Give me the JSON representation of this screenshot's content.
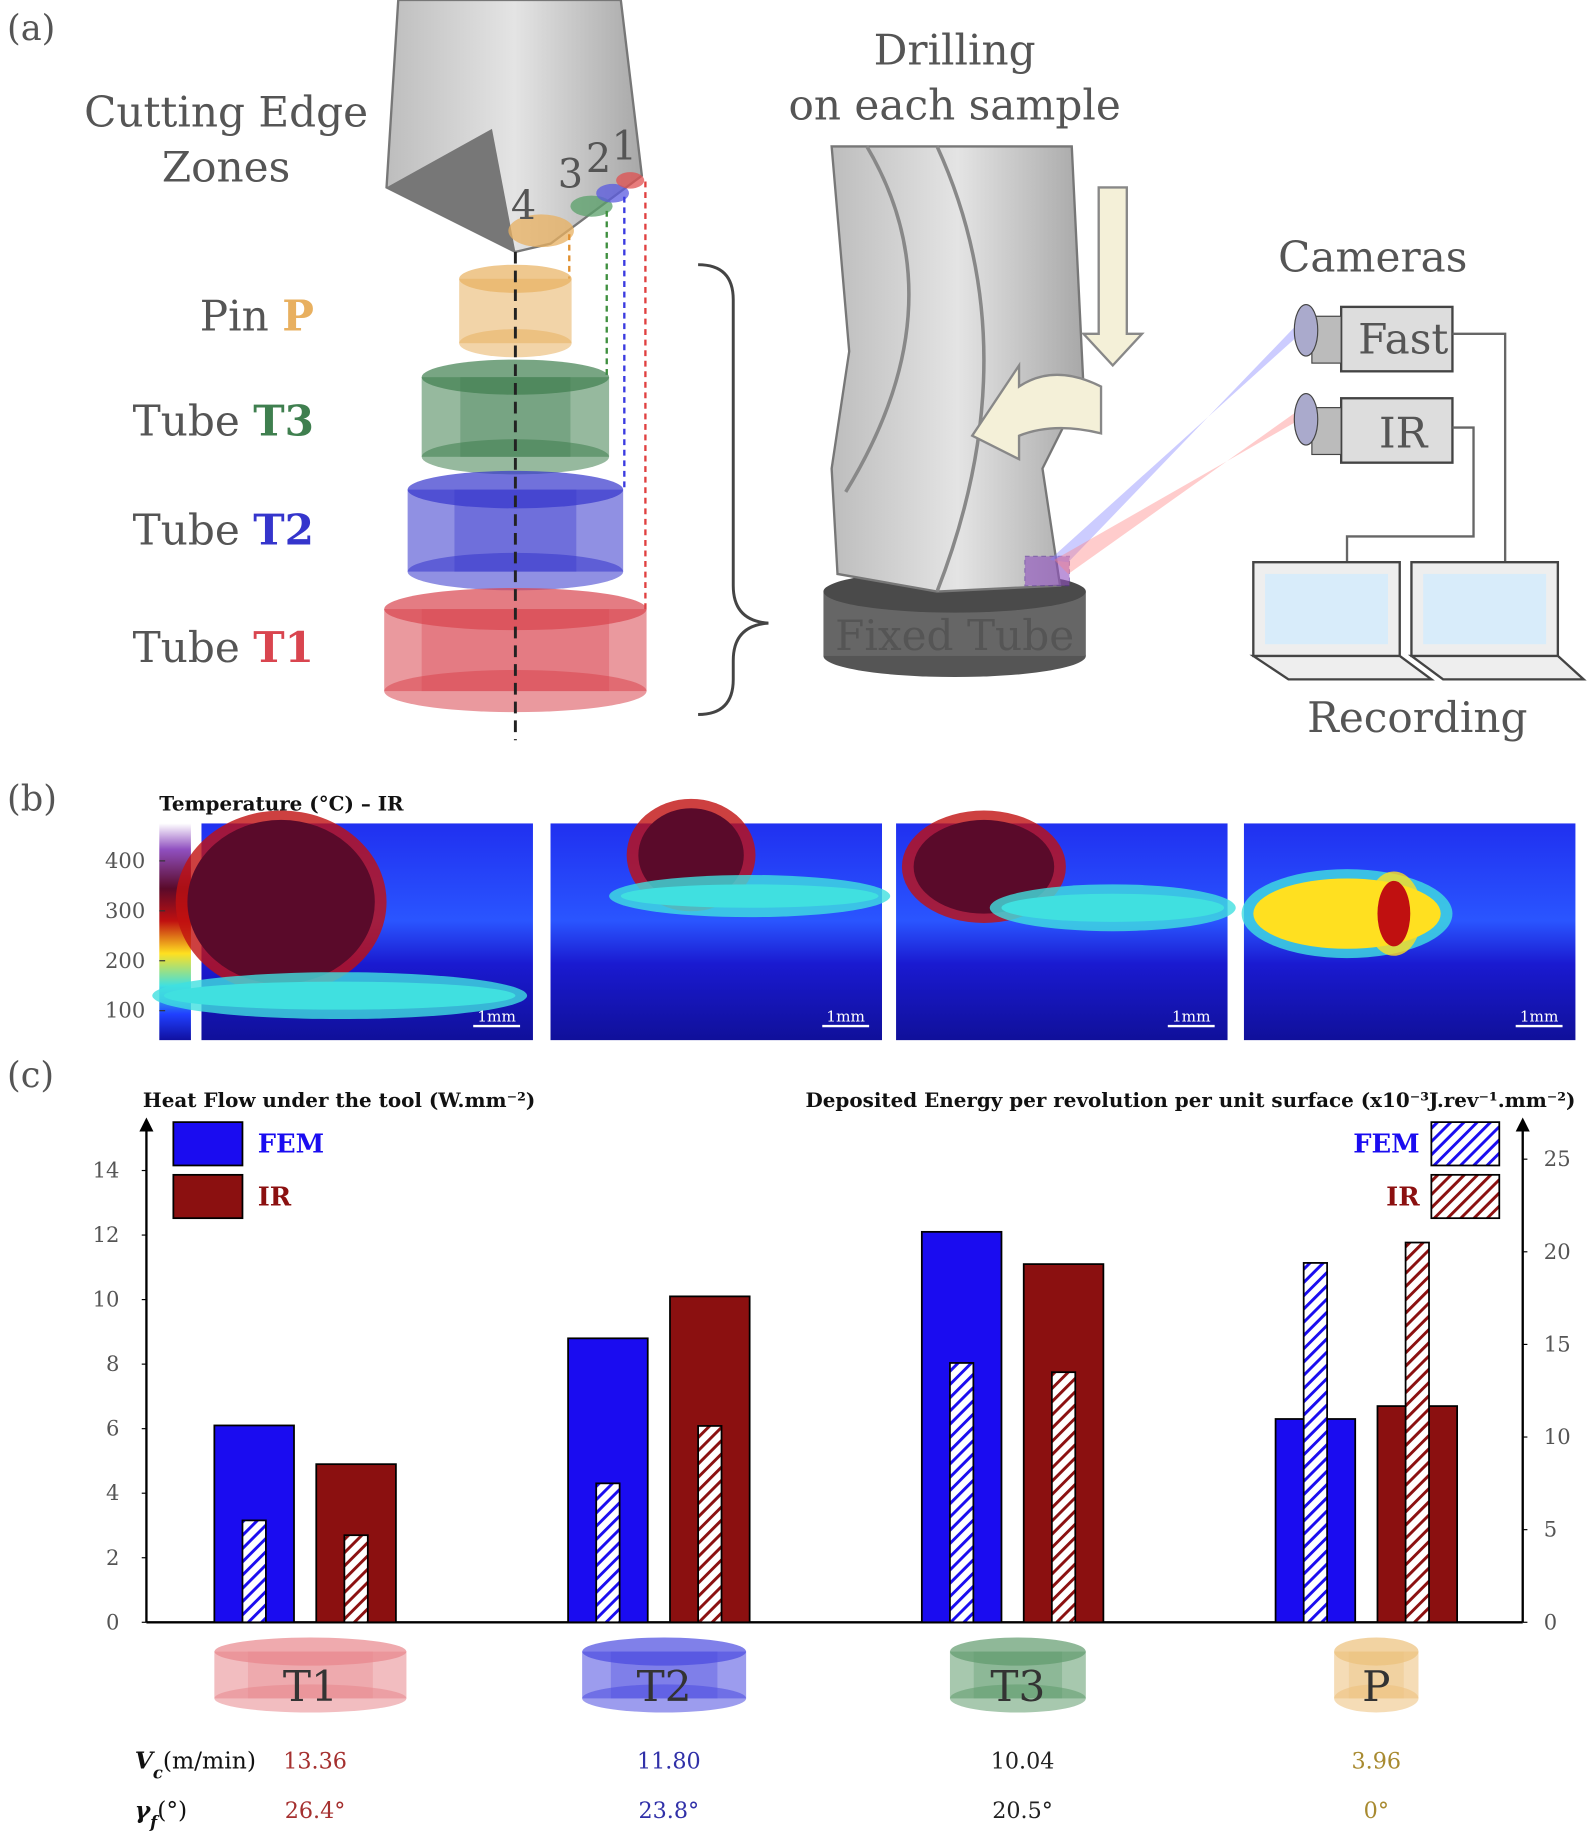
{
  "panel_a": {
    "label": "(a)",
    "zones_title": [
      "Cutting Edge",
      "Zones"
    ],
    "zone_numbers": [
      "4",
      "3",
      "2",
      "1"
    ],
    "samples": [
      {
        "prefix": "Pin",
        "code": "P",
        "color": "#e8b060"
      },
      {
        "prefix": "Tube",
        "code": "T3",
        "color": "#3f7f4f"
      },
      {
        "prefix": "Tube",
        "code": "T2",
        "color": "#3535cc"
      },
      {
        "prefix": "Tube",
        "code": "T1",
        "color": "#d9454f"
      }
    ],
    "drilling_title": [
      "Drilling",
      "on each sample"
    ],
    "fixed_tube": "Fixed Tube",
    "cameras": "Cameras",
    "fast": "Fast",
    "ir": "IR",
    "recording": "Recording"
  },
  "panel_b": {
    "label": "(b)",
    "colorbar_title": "Temperature (°C) – IR",
    "colorbar_lim": [
      41,
      475
    ],
    "colorbar_ticks": [
      100,
      200,
      300,
      400
    ],
    "scale_bar": "1mm"
  },
  "chart_data": {
    "type": "bar",
    "label": "(c)",
    "y_label": "Heat Flow under the tool (W.mm⁻²)",
    "y2_label": "Deposited Energy per revolution per unit surface (x10⁻³J.rev⁻¹.mm⁻²)",
    "categories": [
      "T1",
      "T2",
      "T3",
      "P"
    ],
    "category_colors": [
      "#e8868c",
      "#4a4ae0",
      "#5f9a6c",
      "#ecc07a"
    ],
    "series": [
      {
        "name": "FEM",
        "color": "#1a0cf0",
        "values": [
          6.1,
          8.8,
          12.1,
          6.3
        ]
      },
      {
        "name": "IR",
        "color": "#8b1010",
        "values": [
          4.9,
          10.1,
          11.1,
          6.7
        ]
      },
      {
        "name": "FEM",
        "color": "#1a0cf0",
        "hatched": true,
        "axis": "y2",
        "values": [
          5.5,
          7.5,
          14.0,
          19.4
        ]
      },
      {
        "name": "IR",
        "color": "#8b1010",
        "hatched": true,
        "axis": "y2",
        "values": [
          4.7,
          10.6,
          13.5,
          20.5
        ]
      }
    ],
    "ylim": [
      0,
      15.5
    ],
    "yticks": [
      0,
      2,
      4,
      6,
      8,
      10,
      12,
      14
    ],
    "y2lim": [
      0,
      27
    ],
    "y2ticks": [
      0,
      5,
      10,
      15,
      20,
      25
    ],
    "legend": "top-left",
    "legend2": "top-right",
    "rows": [
      {
        "symbol": "V",
        "subscript": "c",
        "unit": "(m/min)",
        "values": [
          "13.36",
          "11.80",
          "10.04",
          "3.96"
        ]
      },
      {
        "symbol": "γ",
        "subscript": "f",
        "unit": "(°)",
        "values": [
          "26.4°",
          "23.8°",
          "20.5°",
          "0°"
        ]
      }
    ],
    "row_colors": [
      "#a5302f",
      "#3030a8",
      "#222222",
      "#a88a30"
    ]
  }
}
